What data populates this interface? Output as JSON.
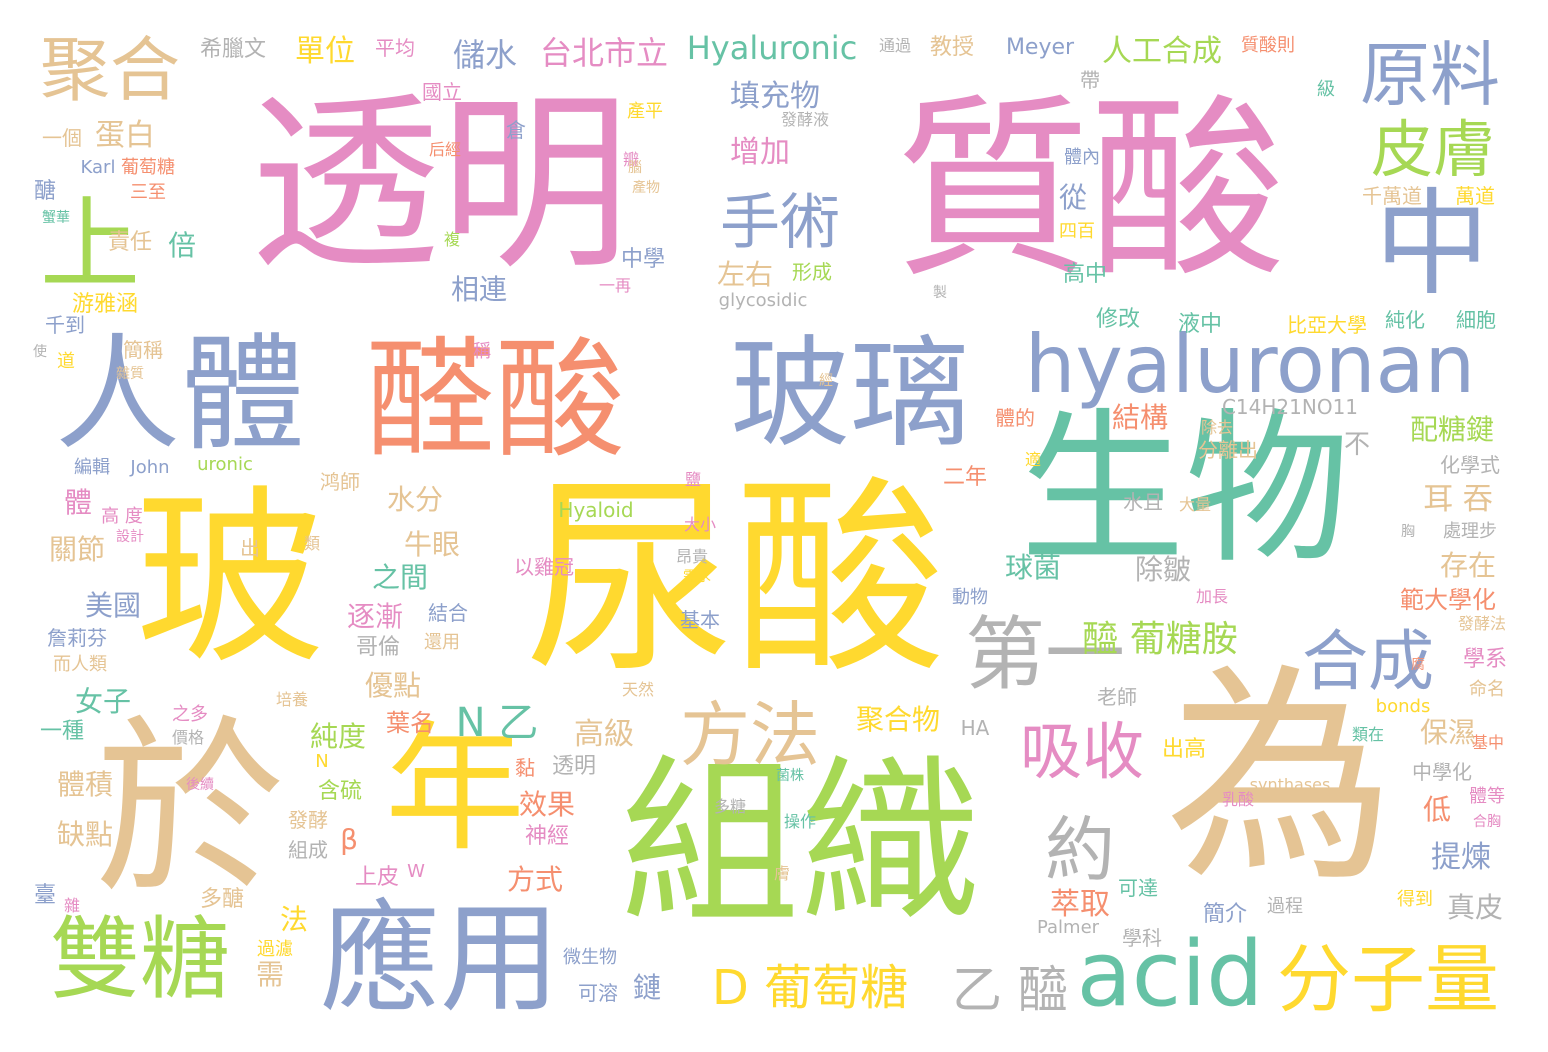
{
  "palette": {
    "pink": "#e58cc3",
    "orange": "#f58f6f",
    "yellow": "#ffd92f",
    "green": "#a6d854",
    "teal": "#66c2a5",
    "blue": "#8da0cb",
    "tan": "#e5c494",
    "gray": "#b3b3b3"
  },
  "words": [
    {
      "text": "透明",
      "color": "#e58cc3"
    },
    {
      "text": "質酸",
      "color": "#e58cc3"
    },
    {
      "text": "玻",
      "color": "#ffd92f"
    },
    {
      "text": "尿酸",
      "color": "#ffd92f"
    },
    {
      "text": "生物",
      "color": "#66c2a5"
    },
    {
      "text": "為",
      "color": "#e5c494"
    },
    {
      "text": "組織",
      "color": "#a6d854"
    },
    {
      "text": "於",
      "color": "#e5c494"
    },
    {
      "text": "醛酸",
      "color": "#f58f6f"
    },
    {
      "text": "玻璃",
      "color": "#8da0cb"
    },
    {
      "text": "人體",
      "color": "#8da0cb"
    },
    {
      "text": "hyaluronan",
      "color": "#8da0cb"
    },
    {
      "text": "中",
      "color": "#8da0cb"
    },
    {
      "text": "年",
      "color": "#ffd92f"
    },
    {
      "text": "應用",
      "color": "#8da0cb"
    },
    {
      "text": "雙糖",
      "color": "#a6d854"
    },
    {
      "text": "acid",
      "color": "#66c2a5"
    },
    {
      "text": "分子量",
      "color": "#ffd92f"
    },
    {
      "text": "上",
      "color": "#a6d854"
    },
    {
      "text": "聚合",
      "color": "#e5c494"
    },
    {
      "text": "原料",
      "color": "#8da0cb"
    },
    {
      "text": "皮膚",
      "color": "#a6d854"
    },
    {
      "text": "第一",
      "color": "#b3b3b3"
    },
    {
      "text": "合成",
      "color": "#8da0cb"
    },
    {
      "text": "方法",
      "color": "#e5c494"
    },
    {
      "text": "吸收",
      "color": "#e58cc3"
    },
    {
      "text": "手術",
      "color": "#8da0cb"
    },
    {
      "text": "約",
      "color": "#b3b3b3"
    },
    {
      "text": "D 葡萄糖",
      "color": "#ffd92f"
    },
    {
      "text": "乙 醯",
      "color": "#b3b3b3"
    },
    {
      "text": "Hyaluronic",
      "color": "#66c2a5"
    },
    {
      "text": "台北市立",
      "color": "#e58cc3"
    },
    {
      "text": "儲水",
      "color": "#8da0cb"
    },
    {
      "text": "單位",
      "color": "#ffd92f"
    },
    {
      "text": "希臘文",
      "color": "#b3b3b3"
    },
    {
      "text": "平均",
      "color": "#e58cc3"
    },
    {
      "text": "教授",
      "color": "#e5c494"
    },
    {
      "text": "Meyer",
      "color": "#8da0cb"
    },
    {
      "text": "人工合成",
      "color": "#a6d854"
    },
    {
      "text": "質酸則",
      "color": "#f58f6f"
    },
    {
      "text": "填充物",
      "color": "#8da0cb"
    },
    {
      "text": "蛋白",
      "color": "#e5c494"
    },
    {
      "text": "增加",
      "color": "#e58cc3"
    },
    {
      "text": "一個",
      "color": "#e5c494"
    },
    {
      "text": "國立",
      "color": "#e58cc3"
    },
    {
      "text": "Karl",
      "color": "#8da0cb"
    },
    {
      "text": "葡萄糖",
      "color": "#f58f6f"
    },
    {
      "text": "三至",
      "color": "#f58f6f"
    },
    {
      "text": "責任",
      "color": "#e5c494"
    },
    {
      "text": "倍",
      "color": "#66c2a5"
    },
    {
      "text": "左右",
      "color": "#e5c494"
    },
    {
      "text": "相連",
      "color": "#8da0cb"
    },
    {
      "text": "中學",
      "color": "#8da0cb"
    },
    {
      "text": "形成",
      "color": "#a6d854"
    },
    {
      "text": "glycosidic",
      "color": "#b3b3b3"
    },
    {
      "text": "從",
      "color": "#8da0cb"
    },
    {
      "text": "四百",
      "color": "#ffd92f"
    },
    {
      "text": "高中",
      "color": "#66c2a5"
    },
    {
      "text": "千萬道",
      "color": "#e5c494"
    },
    {
      "text": "萬道",
      "color": "#ffd92f"
    },
    {
      "text": "修改",
      "color": "#66c2a5"
    },
    {
      "text": "液中",
      "color": "#66c2a5"
    },
    {
      "text": "比亞大學",
      "color": "#ffd92f"
    },
    {
      "text": "純化",
      "color": "#66c2a5"
    },
    {
      "text": "細胞",
      "color": "#66c2a5"
    },
    {
      "text": "C14H21NO11",
      "color": "#b3b3b3"
    },
    {
      "text": "結構",
      "color": "#f58f6f"
    },
    {
      "text": "不",
      "color": "#b3b3b3"
    },
    {
      "text": "配糖鍵",
      "color": "#a6d854"
    },
    {
      "text": "化學式",
      "color": "#b3b3b3"
    },
    {
      "text": "二年",
      "color": "#f58f6f"
    },
    {
      "text": "耳 吞",
      "color": "#e5c494"
    },
    {
      "text": "水分",
      "color": "#e5c494"
    },
    {
      "text": "牛眼",
      "color": "#e5c494"
    },
    {
      "text": "之間",
      "color": "#66c2a5"
    },
    {
      "text": "球菌",
      "color": "#66c2a5"
    },
    {
      "text": "除皺",
      "color": "#b3b3b3"
    },
    {
      "text": "存在",
      "color": "#e5c494"
    },
    {
      "text": "範大學化",
      "color": "#f58f6f"
    },
    {
      "text": "逐漸",
      "color": "#e58cc3"
    },
    {
      "text": "醯 葡糖胺",
      "color": "#a6d854"
    },
    {
      "text": "美國",
      "color": "#8da0cb"
    },
    {
      "text": "詹莉芬",
      "color": "#8da0cb"
    },
    {
      "text": "關節",
      "color": "#e5c494"
    },
    {
      "text": "女子",
      "color": "#66c2a5"
    },
    {
      "text": "優點",
      "color": "#e5c494"
    },
    {
      "text": "純度",
      "color": "#a6d854"
    },
    {
      "text": "葉名",
      "color": "#f58f6f"
    },
    {
      "text": "N 乙",
      "color": "#66c2a5"
    },
    {
      "text": "高級",
      "color": "#e5c494"
    },
    {
      "text": "聚合物",
      "color": "#ffd92f"
    },
    {
      "text": "HA",
      "color": "#b3b3b3"
    },
    {
      "text": "保濕",
      "color": "#e5c494"
    },
    {
      "text": "學系",
      "color": "#e58cc3"
    },
    {
      "text": "一種",
      "color": "#66c2a5"
    },
    {
      "text": "體積",
      "color": "#e5c494"
    },
    {
      "text": "缺點",
      "color": "#e5c494"
    },
    {
      "text": "含硫",
      "color": "#a6d854"
    },
    {
      "text": "效果",
      "color": "#f58f6f"
    },
    {
      "text": "神經",
      "color": "#e58cc3"
    },
    {
      "text": "透明",
      "color": "#b3b3b3"
    },
    {
      "text": "低",
      "color": "#f58f6f"
    },
    {
      "text": "提煉",
      "color": "#8da0cb"
    },
    {
      "text": "中學化",
      "color": "#b3b3b3"
    },
    {
      "text": "β",
      "color": "#f58f6f"
    },
    {
      "text": "方式",
      "color": "#f58f6f"
    },
    {
      "text": "上皮",
      "color": "#e58cc3"
    },
    {
      "text": "萃取",
      "color": "#f58f6f"
    },
    {
      "text": "真皮",
      "color": "#b3b3b3"
    },
    {
      "text": "簡介",
      "color": "#8da0cb"
    },
    {
      "text": "學科",
      "color": "#b3b3b3"
    },
    {
      "text": "Palmer",
      "color": "#b3b3b3"
    },
    {
      "text": "鏈",
      "color": "#8da0cb"
    },
    {
      "text": "可溶",
      "color": "#8da0cb"
    },
    {
      "text": "需",
      "color": "#e5c494"
    },
    {
      "text": "法",
      "color": "#ffd92f"
    },
    {
      "text": "多醣",
      "color": "#e5c494"
    },
    {
      "text": "Hyaloid",
      "color": "#a6d854"
    },
    {
      "text": "uronic",
      "color": "#a6d854"
    },
    {
      "text": "John",
      "color": "#8da0cb"
    },
    {
      "text": "編輯",
      "color": "#8da0cb"
    },
    {
      "text": "分離出",
      "color": "#e5c494"
    },
    {
      "text": "水且",
      "color": "#b3b3b3"
    },
    {
      "text": "大量",
      "color": "#e5c494"
    },
    {
      "text": "處理步",
      "color": "#b3b3b3"
    },
    {
      "text": "以雞冠",
      "color": "#e58cc3"
    },
    {
      "text": "動物",
      "color": "#8da0cb"
    },
    {
      "text": "基本",
      "color": "#8da0cb"
    },
    {
      "text": "哥倫",
      "color": "#b3b3b3"
    },
    {
      "text": "結合",
      "color": "#8da0cb"
    },
    {
      "text": "老師",
      "color": "#b3b3b3"
    },
    {
      "text": "bonds",
      "color": "#ffd92f"
    },
    {
      "text": "命名",
      "color": "#e5c494"
    },
    {
      "text": "synthases",
      "color": "#e5c494"
    },
    {
      "text": "發酵法",
      "color": "#e5c494"
    },
    {
      "text": "加長",
      "color": "#e58cc3"
    },
    {
      "text": "發酵",
      "color": "#e5c494"
    },
    {
      "text": "組成",
      "color": "#b3b3b3"
    },
    {
      "text": "可達",
      "color": "#66c2a5"
    },
    {
      "text": "過程",
      "color": "#b3b3b3"
    },
    {
      "text": "得到",
      "color": "#ffd92f"
    },
    {
      "text": "微生物",
      "color": "#8da0cb"
    },
    {
      "text": "操作",
      "color": "#66c2a5"
    },
    {
      "text": "乳酸",
      "color": "#e58cc3"
    },
    {
      "text": "出高",
      "color": "#ffd92f"
    },
    {
      "text": "過濾",
      "color": "#ffd92f"
    },
    {
      "text": "體",
      "color": "#e58cc3"
    },
    {
      "text": "出",
      "color": "#e5c494"
    },
    {
      "text": "鸿師",
      "color": "#e5c494"
    },
    {
      "text": "體的",
      "color": "#f58f6f"
    },
    {
      "text": "除去",
      "color": "#e5c494"
    },
    {
      "text": "黏",
      "color": "#f58f6f"
    },
    {
      "text": "倉",
      "color": "#8da0cb"
    },
    {
      "text": "瓣",
      "color": "#e58cc3"
    },
    {
      "text": "產平",
      "color": "#ffd92f"
    },
    {
      "text": "發酵液",
      "color": "#b3b3b3"
    },
    {
      "text": "帶",
      "color": "#b3b3b3"
    },
    {
      "text": "級",
      "color": "#66c2a5"
    },
    {
      "text": "通過",
      "color": "#b3b3b3"
    },
    {
      "text": "體內",
      "color": "#8da0cb"
    },
    {
      "text": "醣",
      "color": "#8da0cb"
    },
    {
      "text": "複",
      "color": "#a6d854"
    },
    {
      "text": "一再",
      "color": "#e58cc3"
    },
    {
      "text": "千到",
      "color": "#8da0cb"
    },
    {
      "text": "稱",
      "color": "#e58cc3"
    },
    {
      "text": "道",
      "color": "#ffd92f"
    },
    {
      "text": "簡稱",
      "color": "#e5c494"
    },
    {
      "text": "游雅涵",
      "color": "#ffd92f"
    },
    {
      "text": "天然",
      "color": "#e5c494"
    },
    {
      "text": "之多",
      "color": "#e58cc3"
    },
    {
      "text": "而人類",
      "color": "#e5c494"
    },
    {
      "text": "還用",
      "color": "#e5c494"
    },
    {
      "text": "培養",
      "color": "#e5c494"
    },
    {
      "text": "W",
      "color": "#e58cc3"
    },
    {
      "text": "N",
      "color": "#ffd92f"
    },
    {
      "text": "臺",
      "color": "#8da0cb"
    },
    {
      "text": "雜",
      "color": "#e58cc3"
    },
    {
      "text": "高 度",
      "color": "#e58cc3"
    },
    {
      "text": "設計",
      "color": "#e58cc3"
    },
    {
      "text": "類",
      "color": "#e5c494"
    },
    {
      "text": "大小",
      "color": "#e58cc3"
    },
    {
      "text": "昂貴",
      "color": "#b3b3b3"
    },
    {
      "text": "需求",
      "color": "#ffd92f"
    },
    {
      "text": "適",
      "color": "#ffd92f"
    },
    {
      "text": "鹽",
      "color": "#e58cc3"
    },
    {
      "text": "胸",
      "color": "#b3b3b3"
    },
    {
      "text": "類在",
      "color": "#66c2a5"
    },
    {
      "text": "基中",
      "color": "#f58f6f"
    },
    {
      "text": "體等",
      "color": "#e58cc3"
    },
    {
      "text": "合胸",
      "color": "#e58cc3"
    },
    {
      "text": "價格",
      "color": "#b3b3b3"
    },
    {
      "text": "後續",
      "color": "#e58cc3"
    },
    {
      "text": "菌株",
      "color": "#66c2a5"
    },
    {
      "text": "多糖",
      "color": "#b3b3b3"
    },
    {
      "text": "雜質",
      "color": "#e5c494"
    },
    {
      "text": "使",
      "color": "#b3b3b3"
    },
    {
      "text": "蟹華",
      "color": "#66c2a5"
    },
    {
      "text": "后經",
      "color": "#f58f6f"
    },
    {
      "text": "產物",
      "color": "#e5c494"
    },
    {
      "text": "腦",
      "color": "#e5c494"
    },
    {
      "text": "製",
      "color": "#b3b3b3"
    },
    {
      "text": "經",
      "color": "#e5c494"
    },
    {
      "text": "膚",
      "color": "#e5c494"
    },
    {
      "text": "腐",
      "color": "#f58f6f"
    }
  ]
}
